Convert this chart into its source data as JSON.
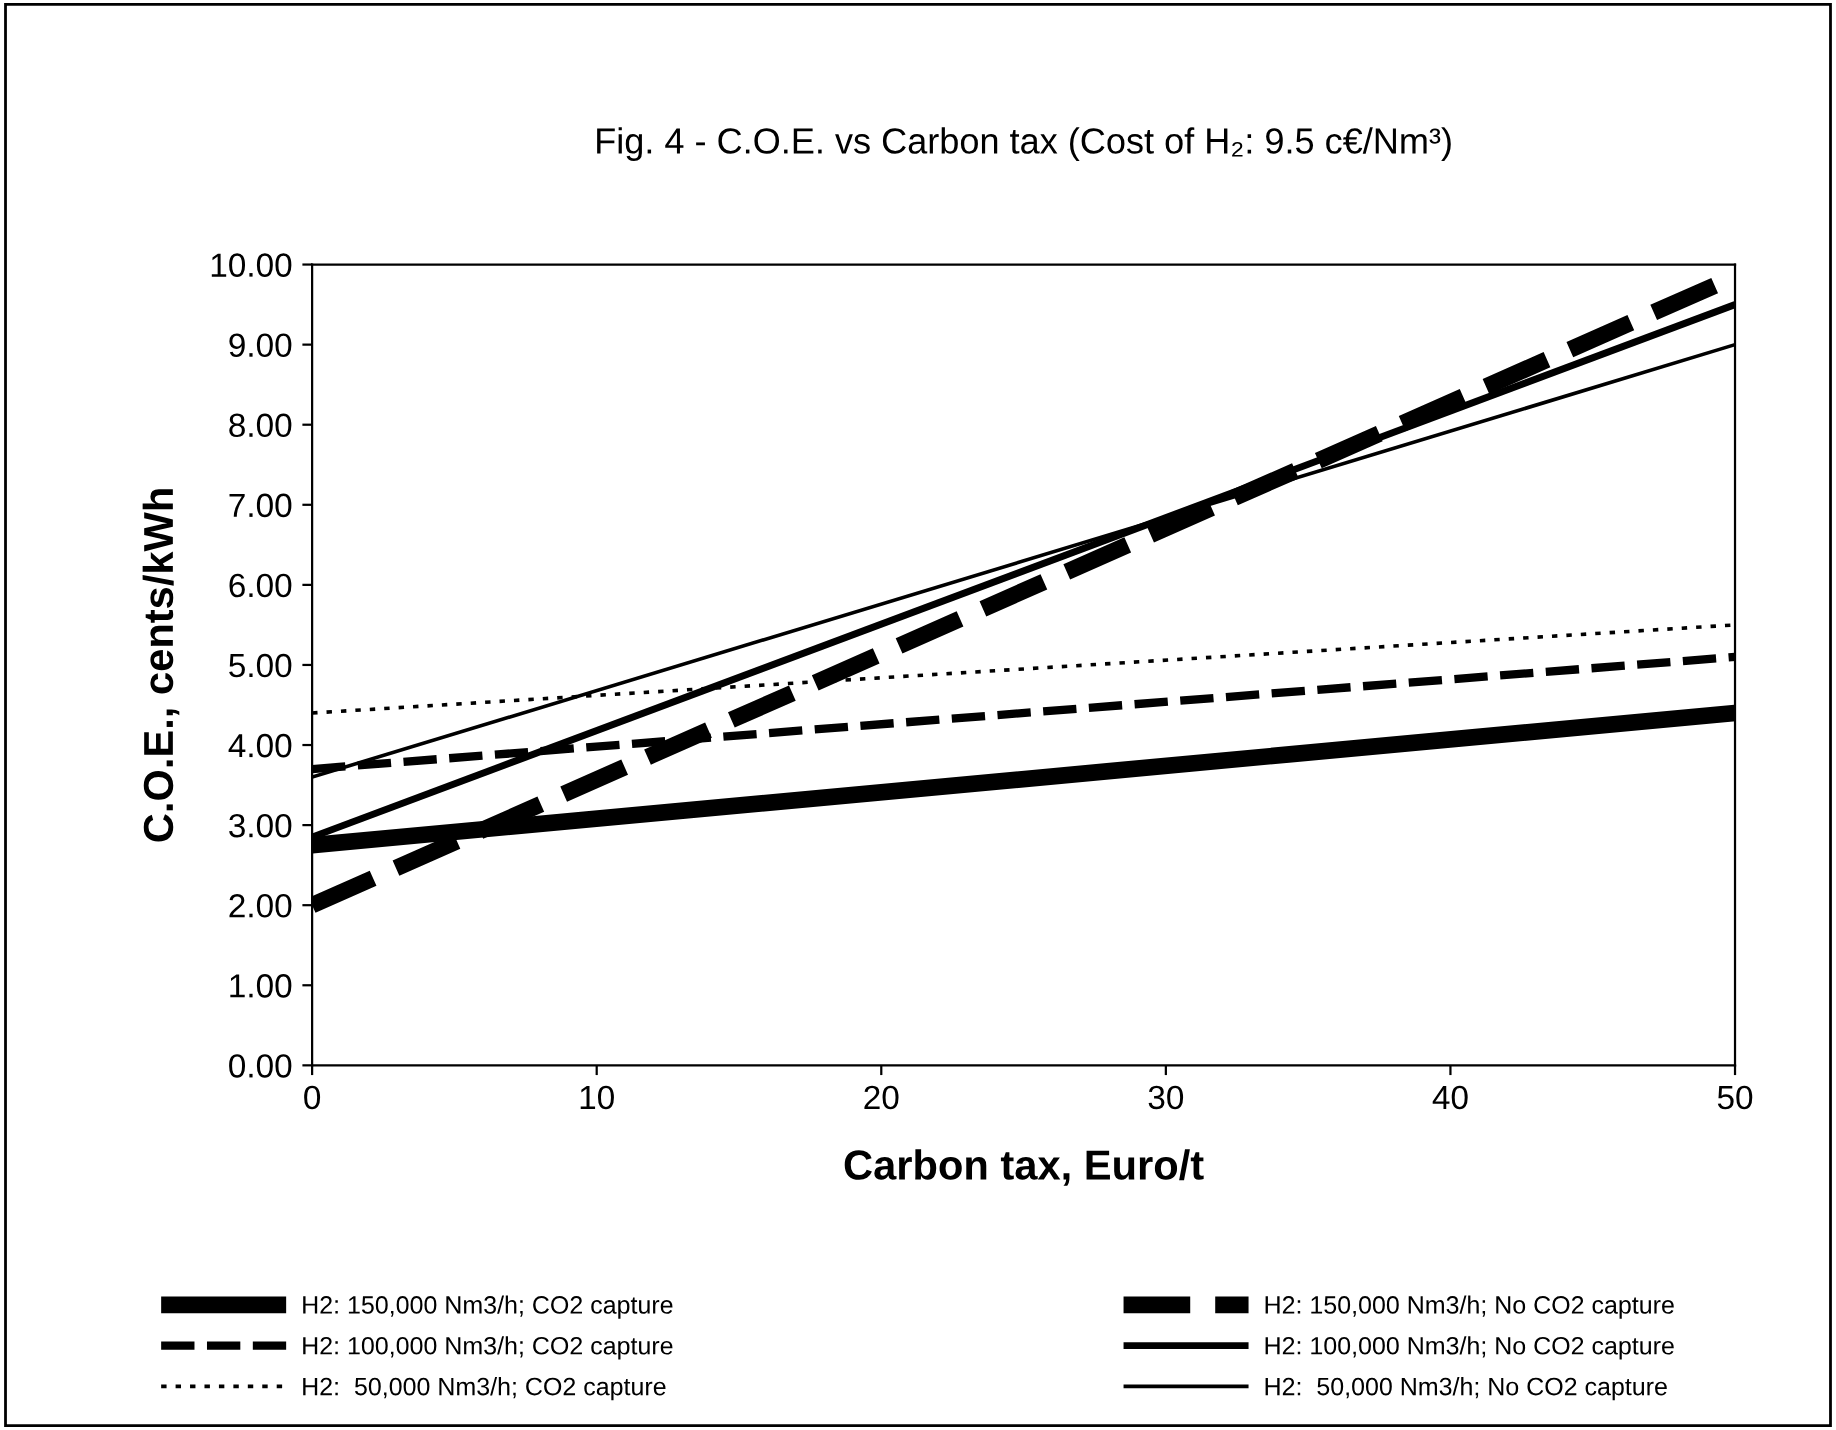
{
  "chart_data": {
    "type": "line",
    "title": "Fig. 4 - C.O.E. vs Carbon tax (Cost of H₂: 9.5 c€/Nm³)",
    "xlabel": "Carbon tax, Euro/t",
    "ylabel": "C.O.E., cents/kWh",
    "x": [
      0,
      50
    ],
    "series": [
      {
        "name": "H2: 150,000 Nm3/h; CO2 capture",
        "color": "#000000",
        "line_style": "solid",
        "values": [
          2.75,
          4.4
        ]
      },
      {
        "name": "H2: 100,000 Nm3/h; CO2 capture",
        "color": "#000000",
        "line_style": "dashed",
        "values": [
          3.7,
          5.1
        ]
      },
      {
        "name": "H2:  50,000 Nm3/h; CO2 capture",
        "color": "#000000",
        "line_style": "dotted",
        "values": [
          4.4,
          5.5
        ]
      },
      {
        "name": "H2: 150,000 Nm3/h; No CO2 capture",
        "color": "#000000",
        "line_style": "dashed",
        "values": [
          2.0,
          9.85
        ]
      },
      {
        "name": "H2: 100,000 Nm3/h; No CO2 capture",
        "color": "#000000",
        "line_style": "solid",
        "values": [
          2.85,
          9.5
        ]
      },
      {
        "name": "H2:  50,000 Nm3/h; No CO2 capture",
        "color": "#000000",
        "line_style": "solid",
        "values": [
          3.6,
          9.0
        ]
      }
    ],
    "xlim": [
      0,
      50
    ],
    "xticks": [
      0,
      10,
      20,
      30,
      40,
      50
    ],
    "ylim": [
      0,
      10
    ],
    "yticks": [
      {
        "value": 0,
        "label": "0.00"
      },
      {
        "value": 1,
        "label": "1.00"
      },
      {
        "value": 2,
        "label": "2.00"
      },
      {
        "value": 3,
        "label": "3.00"
      },
      {
        "value": 4,
        "label": "4.00"
      },
      {
        "value": 5,
        "label": "5.00"
      },
      {
        "value": 6,
        "label": "6.00"
      },
      {
        "value": 7,
        "label": "7.00"
      },
      {
        "value": 8,
        "label": "8.00"
      },
      {
        "value": 9,
        "label": "9.00"
      },
      {
        "value": 10,
        "label": "10.00"
      }
    ],
    "grid": false,
    "legend": "bottom",
    "marker": "none"
  }
}
